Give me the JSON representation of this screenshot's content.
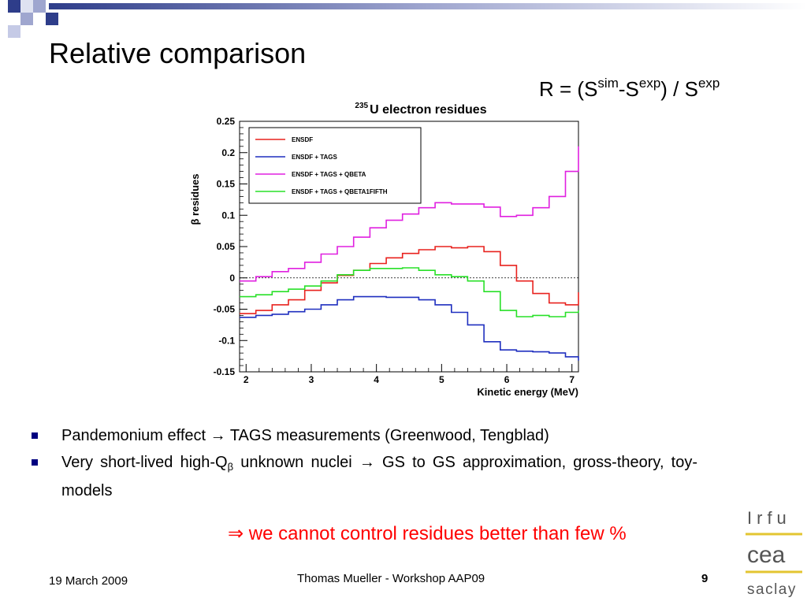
{
  "slide": {
    "title": "Relative comparison",
    "formula": {
      "lead": "R = (S",
      "sup1": "sim",
      "mid": "-S",
      "sup2": "exp",
      "tail": ") / S",
      "sup3": "exp"
    },
    "bullets": [
      {
        "text": "Pandemonium effect → TAGS measurements (Greenwood, Tengblad)"
      },
      {
        "before_sub": "Very short-lived high-Q",
        "sub": "β",
        "after_sub": " unknown nuclei → GS to GS approximation, gross-theory, toy-models"
      }
    ],
    "conclusion": "⇒ we cannot control residues better than few %",
    "footer": {
      "date": "19 March 2009",
      "author": "Thomas Mueller - Workshop AAP09",
      "page": "9"
    },
    "logo": {
      "top": "Irfu",
      "middle": "cea",
      "bottom": "saclay"
    },
    "colors": {
      "title_square_dark": "#2e3d8a",
      "title_square_light": "#9fa6cf",
      "conclusion": "#ff0000",
      "bullet": "#000080"
    }
  },
  "chart_data": {
    "type": "line",
    "style": "step",
    "title": "U electron residues",
    "title_superscript": "235",
    "xlabel": "Kinetic energy (MeV)",
    "ylabel": "β residues",
    "xlim": [
      1.9,
      7.1
    ],
    "ylim": [
      -0.15,
      0.25
    ],
    "xticks": [
      2,
      3,
      4,
      5,
      6,
      7
    ],
    "yticks": [
      -0.15,
      -0.1,
      -0.05,
      0,
      0.05,
      0.1,
      0.15,
      0.2,
      0.25
    ],
    "ytick_labels": [
      "-0.15",
      "-0.1",
      "-0.05",
      "0",
      "0.05",
      "0.1",
      "0.15",
      "0.2",
      "0.25"
    ],
    "reference_line": 0,
    "legend_position": "top-left",
    "bin_edges": [
      1.9,
      2.15,
      2.4,
      2.65,
      2.9,
      3.15,
      3.4,
      3.65,
      3.9,
      4.15,
      4.4,
      4.65,
      4.9,
      5.15,
      5.4,
      5.65,
      5.9,
      6.15,
      6.4,
      6.65,
      6.9,
      7.1
    ],
    "series": [
      {
        "name": "ENSDF",
        "color": "#e8221e",
        "values": [
          -0.057,
          -0.052,
          -0.043,
          -0.035,
          -0.02,
          -0.008,
          0.004,
          0.012,
          0.023,
          0.032,
          0.039,
          0.045,
          0.05,
          0.048,
          0.05,
          0.042,
          0.02,
          -0.005,
          -0.025,
          -0.04,
          -0.043,
          -0.023
        ]
      },
      {
        "name": "ENSDF + TAGS",
        "color": "#1f2fbf",
        "values": [
          -0.063,
          -0.06,
          -0.058,
          -0.054,
          -0.05,
          -0.043,
          -0.035,
          -0.03,
          -0.03,
          -0.031,
          -0.031,
          -0.035,
          -0.043,
          -0.055,
          -0.075,
          -0.102,
          -0.115,
          -0.117,
          -0.118,
          -0.12,
          -0.126,
          -0.132
        ]
      },
      {
        "name": "ENSDF + TAGS + QBETA",
        "color": "#e020e0",
        "values": [
          -0.005,
          0.002,
          0.01,
          0.015,
          0.025,
          0.038,
          0.05,
          0.065,
          0.08,
          0.092,
          0.102,
          0.112,
          0.12,
          0.118,
          0.118,
          0.113,
          0.098,
          0.1,
          0.112,
          0.13,
          0.17,
          0.21
        ]
      },
      {
        "name": "ENSDF + TAGS + QBETA1FIFTH",
        "color": "#28e028",
        "values": [
          -0.03,
          -0.027,
          -0.022,
          -0.018,
          -0.013,
          -0.005,
          0.005,
          0.012,
          0.015,
          0.015,
          0.016,
          0.012,
          0.005,
          0.002,
          -0.005,
          -0.022,
          -0.052,
          -0.062,
          -0.06,
          -0.062,
          -0.055,
          -0.052
        ]
      }
    ]
  }
}
